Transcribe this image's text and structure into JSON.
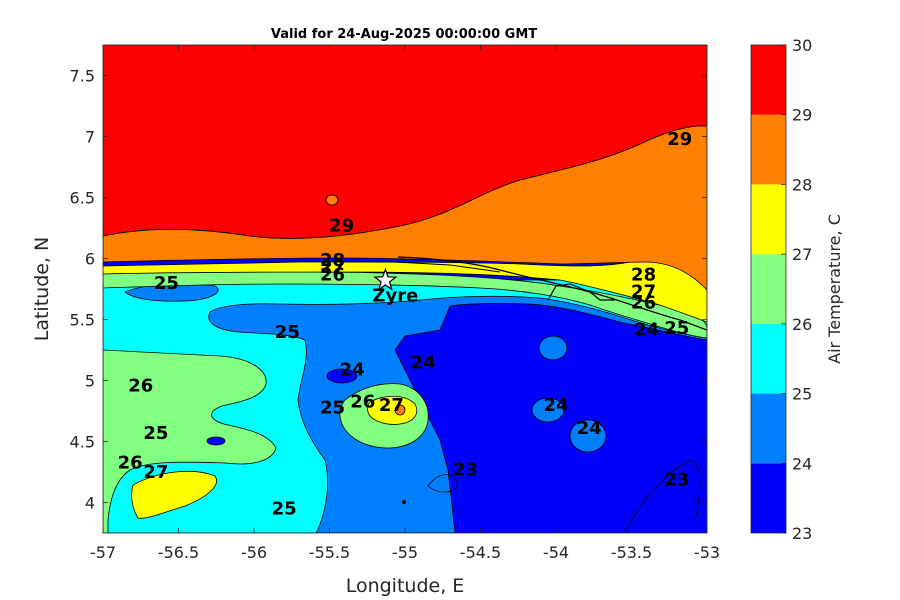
{
  "chart_data": {
    "type": "contour",
    "title": "Valid for 24-Aug-2025 00:00:00 GMT",
    "xlabel": "Longitude, E",
    "ylabel": "Latitude, N",
    "xlim": [
      -57,
      -53
    ],
    "ylim": [
      3.75,
      7.75
    ],
    "x_ticks": [
      -57,
      -56.5,
      -56,
      -55.5,
      -55,
      -54.5,
      -54,
      -53.5,
      -53
    ],
    "y_ticks": [
      4,
      4.5,
      5,
      5.5,
      6,
      6.5,
      7,
      7.5
    ],
    "x_tick_labels": [
      "-57",
      "-56.5",
      "-56",
      "-55.5",
      "-55",
      "-54.5",
      "-54",
      "-53.5",
      "-53"
    ],
    "y_tick_labels": [
      "4",
      "4.5",
      "5",
      "5.5",
      "6",
      "6.5",
      "7",
      "7.5"
    ],
    "colorbar": {
      "label": "Air Temperature, C",
      "levels": [
        23,
        24,
        25,
        26,
        27,
        28,
        29,
        30
      ],
      "tick_labels": [
        "23",
        "24",
        "25",
        "26",
        "27",
        "28",
        "29",
        "30"
      ],
      "colors": [
        "#0000ff",
        "#0080ff",
        "#00ffff",
        "#80ff80",
        "#ffff00",
        "#ff8000",
        "#ff0000",
        "#800000"
      ]
    },
    "contour_labels": [
      {
        "text": "29",
        "x": -53.18,
        "y": 6.93
      },
      {
        "text": "29",
        "x": -55.42,
        "y": 6.22
      },
      {
        "text": "28",
        "x": -55.48,
        "y": 5.94
      },
      {
        "text": "27",
        "x": -55.48,
        "y": 5.88
      },
      {
        "text": "26",
        "x": -55.48,
        "y": 5.82
      },
      {
        "text": "28",
        "x": -53.42,
        "y": 5.82
      },
      {
        "text": "27",
        "x": -53.42,
        "y": 5.68
      },
      {
        "text": "26",
        "x": -53.42,
        "y": 5.59
      },
      {
        "text": "25",
        "x": -56.58,
        "y": 5.75
      },
      {
        "text": "25",
        "x": -55.78,
        "y": 5.35
      },
      {
        "text": "24",
        "x": -55.35,
        "y": 5.04
      },
      {
        "text": "24",
        "x": -54.88,
        "y": 5.1
      },
      {
        "text": "24",
        "x": -53.4,
        "y": 5.37
      },
      {
        "text": "25",
        "x": -53.2,
        "y": 5.38
      },
      {
        "text": "26",
        "x": -56.75,
        "y": 4.91
      },
      {
        "text": "25",
        "x": -56.65,
        "y": 4.52
      },
      {
        "text": "26",
        "x": -56.82,
        "y": 4.28
      },
      {
        "text": "27",
        "x": -56.65,
        "y": 4.2
      },
      {
        "text": "25",
        "x": -55.48,
        "y": 4.73
      },
      {
        "text": "26",
        "x": -55.28,
        "y": 4.78
      },
      {
        "text": "27",
        "x": -55.09,
        "y": 4.75
      },
      {
        "text": "24",
        "x": -54.0,
        "y": 4.75
      },
      {
        "text": "24",
        "x": -53.78,
        "y": 4.56
      },
      {
        "text": "23",
        "x": -54.6,
        "y": 4.22
      },
      {
        "text": "23",
        "x": -53.2,
        "y": 4.14
      },
      {
        "text": "25",
        "x": -55.8,
        "y": 3.9
      }
    ],
    "station": {
      "name": "Zyre",
      "x": -55.13,
      "y": 5.82
    },
    "grid": false,
    "legend": "none"
  }
}
